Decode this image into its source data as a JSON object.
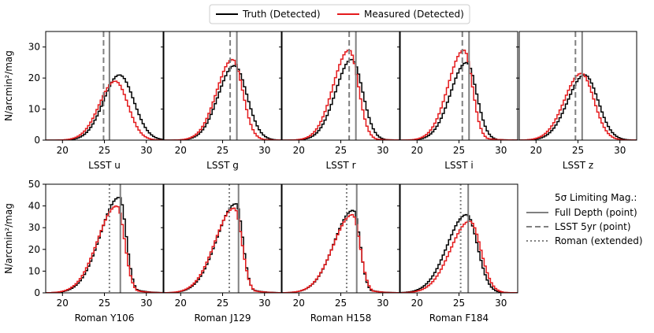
{
  "legend_top": {
    "entries": [
      {
        "label": "Truth (Detected)",
        "color": "#000000",
        "style": "solid"
      },
      {
        "label": "Measured (Detected)",
        "color": "#e41a1c",
        "style": "solid"
      }
    ]
  },
  "legend_right": {
    "title": "5σ Limiting Mag.:",
    "entries": [
      {
        "label": "Full Depth (point)",
        "color": "#808080",
        "style": "solid"
      },
      {
        "label": "LSST 5yr (point)",
        "color": "#808080",
        "style": "dashed"
      },
      {
        "label": "Roman (extended)",
        "color": "#808080",
        "style": "dotted"
      }
    ]
  },
  "ylabel": "N/arcmin²/mag",
  "colors": {
    "truth": "#000000",
    "measured": "#e41a1c",
    "limit": "#808080"
  },
  "chart_data": [
    {
      "type": "histogram",
      "title": "LSST u",
      "xlabel": "LSST u",
      "row": 0,
      "col": 0,
      "xlim": [
        18,
        32
      ],
      "ylim": [
        0,
        35
      ],
      "xticks": [
        20,
        25,
        30
      ],
      "yticks": [
        0,
        10,
        20,
        30
      ],
      "show_yticklabels": true,
      "truth": {
        "peak_mag": 26.8,
        "peak": 21,
        "width_left": 1.9,
        "width_right": 1.7
      },
      "measured": {
        "peak_mag": 26.3,
        "peak": 19,
        "width_left": 1.9,
        "width_right": 1.5
      },
      "limits": {
        "full_depth": 25.6,
        "lsst_5yr": 24.9
      }
    },
    {
      "type": "histogram",
      "title": "LSST g",
      "xlabel": "LSST g",
      "row": 0,
      "col": 1,
      "xlim": [
        18,
        32
      ],
      "ylim": [
        0,
        35
      ],
      "xticks": [
        20,
        25,
        30
      ],
      "yticks": [
        0,
        10,
        20,
        30
      ],
      "show_yticklabels": false,
      "truth": {
        "peak_mag": 26.4,
        "peak": 24,
        "width_left": 1.9,
        "width_right": 1.5
      },
      "measured": {
        "peak_mag": 26.2,
        "peak": 26,
        "width_left": 1.9,
        "width_right": 1.2
      },
      "limits": {
        "full_depth": 26.7,
        "lsst_5yr": 25.9
      }
    },
    {
      "type": "histogram",
      "title": "LSST r",
      "xlabel": "LSST r",
      "row": 0,
      "col": 2,
      "xlim": [
        18,
        32
      ],
      "ylim": [
        0,
        35
      ],
      "xticks": [
        20,
        25,
        30
      ],
      "yticks": [
        0,
        10,
        20,
        30
      ],
      "show_yticklabels": false,
      "truth": {
        "peak_mag": 26.3,
        "peak": 26,
        "width_left": 1.9,
        "width_right": 1.3
      },
      "measured": {
        "peak_mag": 26.0,
        "peak": 29,
        "width_left": 1.9,
        "width_right": 1.1
      },
      "limits": {
        "full_depth": 26.8,
        "lsst_5yr": 26.0
      }
    },
    {
      "type": "histogram",
      "title": "LSST i",
      "xlabel": "LSST i",
      "row": 0,
      "col": 3,
      "xlim": [
        18,
        32
      ],
      "ylim": [
        0,
        35
      ],
      "xticks": [
        20,
        25,
        30
      ],
      "yticks": [
        0,
        10,
        20,
        30
      ],
      "show_yticklabels": false,
      "truth": {
        "peak_mag": 25.9,
        "peak": 25,
        "width_left": 1.9,
        "width_right": 1.2
      },
      "measured": {
        "peak_mag": 25.6,
        "peak": 29,
        "width_left": 1.9,
        "width_right": 1.0
      },
      "limits": {
        "full_depth": 26.2,
        "lsst_5yr": 25.4
      }
    },
    {
      "type": "histogram",
      "title": "LSST z",
      "xlabel": "LSST z",
      "row": 0,
      "col": 4,
      "xlim": [
        18,
        32
      ],
      "ylim": [
        0,
        35
      ],
      "xticks": [
        20,
        25,
        30
      ],
      "yticks": [
        0,
        10,
        20,
        30
      ],
      "show_yticklabels": false,
      "truth": {
        "peak_mag": 25.8,
        "peak": 21,
        "width_left": 2.0,
        "width_right": 1.6
      },
      "measured": {
        "peak_mag": 25.4,
        "peak": 21.5,
        "width_left": 2.0,
        "width_right": 1.5
      },
      "limits": {
        "full_depth": 25.5,
        "lsst_5yr": 24.7
      }
    },
    {
      "type": "histogram",
      "title": "Roman Y106",
      "xlabel": "Roman Y106",
      "row": 1,
      "col": 0,
      "xlim": [
        18,
        32
      ],
      "ylim": [
        0,
        50
      ],
      "xticks": [
        20,
        25,
        30
      ],
      "yticks": [
        0,
        10,
        20,
        30,
        40,
        50
      ],
      "show_yticklabels": true,
      "truth": {
        "peak_mag": 26.8,
        "peak": 44,
        "width_left": 2.3,
        "width_right": 0.8
      },
      "measured": {
        "peak_mag": 26.5,
        "peak": 40,
        "width_left": 2.3,
        "width_right": 0.9
      },
      "limits": {
        "full_depth": 26.9,
        "roman_extended": 25.6
      }
    },
    {
      "type": "histogram",
      "title": "Roman J129",
      "xlabel": "Roman J129",
      "row": 1,
      "col": 1,
      "xlim": [
        18,
        32
      ],
      "ylim": [
        0,
        50
      ],
      "xticks": [
        20,
        25,
        30
      ],
      "yticks": [
        0,
        10,
        20,
        30,
        40,
        50
      ],
      "show_yticklabels": false,
      "truth": {
        "peak_mag": 26.6,
        "peak": 41,
        "width_left": 2.3,
        "width_right": 0.8
      },
      "measured": {
        "peak_mag": 26.4,
        "peak": 39,
        "width_left": 2.3,
        "width_right": 0.9
      },
      "limits": {
        "full_depth": 26.9,
        "roman_extended": 25.8
      }
    },
    {
      "type": "histogram",
      "title": "Roman H158",
      "xlabel": "Roman H158",
      "row": 1,
      "col": 2,
      "xlim": [
        18,
        32
      ],
      "ylim": [
        0,
        50
      ],
      "xticks": [
        20,
        25,
        30
      ],
      "yticks": [
        0,
        10,
        20,
        30,
        40,
        50
      ],
      "show_yticklabels": false,
      "truth": {
        "peak_mag": 26.5,
        "peak": 38,
        "width_left": 2.3,
        "width_right": 0.8
      },
      "measured": {
        "peak_mag": 26.4,
        "peak": 36,
        "width_left": 2.3,
        "width_right": 0.9
      },
      "limits": {
        "full_depth": 26.9,
        "roman_extended": 25.7
      }
    },
    {
      "type": "histogram",
      "title": "Roman F184",
      "xlabel": "Roman F184",
      "row": 1,
      "col": 3,
      "xlim": [
        18,
        32
      ],
      "ylim": [
        0,
        50
      ],
      "xticks": [
        20,
        25,
        30
      ],
      "yticks": [
        0,
        10,
        20,
        30,
        40,
        50
      ],
      "show_yticklabels": false,
      "truth": {
        "peak_mag": 25.9,
        "peak": 36,
        "width_left": 2.3,
        "width_right": 1.3
      },
      "measured": {
        "peak_mag": 26.3,
        "peak": 33,
        "width_left": 2.3,
        "width_right": 1.3
      },
      "limits": {
        "full_depth": 26.1,
        "roman_extended": 25.2
      }
    }
  ]
}
